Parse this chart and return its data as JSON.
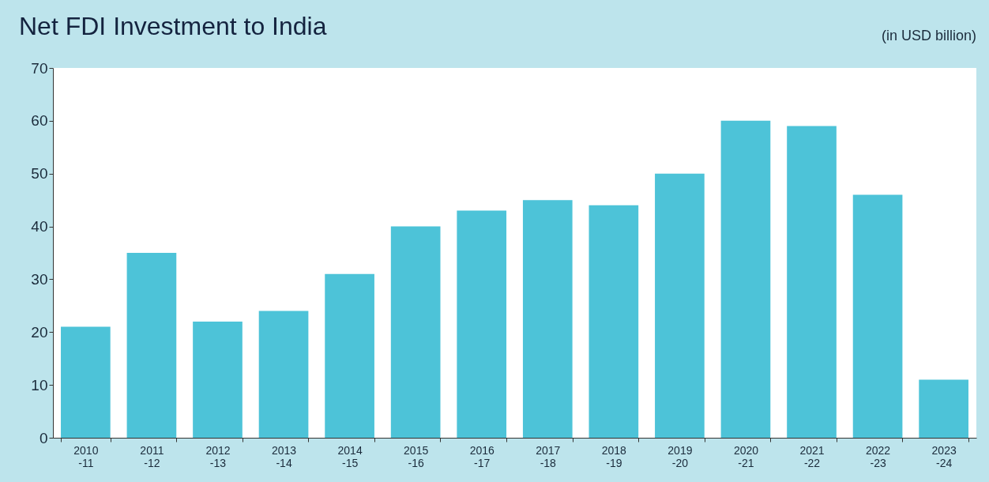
{
  "chart_data": {
    "type": "bar",
    "title": "Net FDI Investment to India",
    "subtitle": "(in USD billion)",
    "categories": [
      "2010\n-11",
      "2011\n-12",
      "2012\n-13",
      "2013\n-14",
      "2014\n-15",
      "2015\n-16",
      "2016\n-17",
      "2017\n-18",
      "2018\n-19",
      "2019\n-20",
      "2020\n-21",
      "2021\n-22",
      "2022\n-23",
      "2023\n-24"
    ],
    "values": [
      21,
      35,
      22,
      24,
      31,
      40,
      43,
      45,
      44,
      50,
      60,
      59,
      46,
      11
    ],
    "color": "#4dc3d8",
    "ylim": [
      0,
      70
    ],
    "yticks": [
      0,
      10,
      20,
      30,
      40,
      50,
      60,
      70
    ],
    "grid": false
  }
}
